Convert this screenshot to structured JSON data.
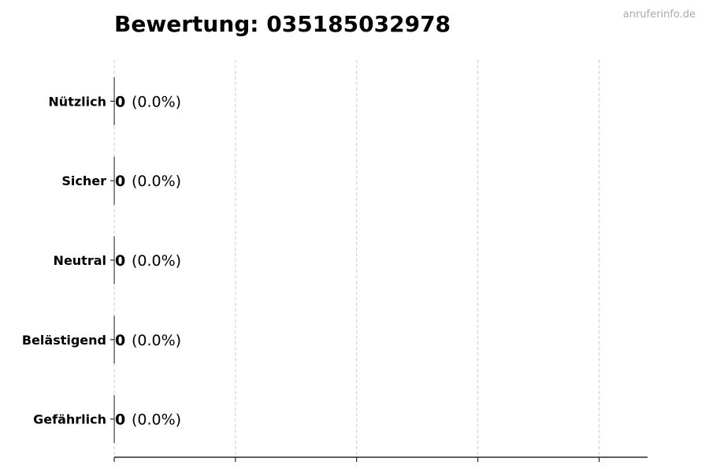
{
  "watermark": "anruferinfo.de",
  "chart_data": {
    "type": "bar",
    "orientation": "horizontal",
    "title": "Bewertung: 035185032978",
    "categories": [
      "Nützlich",
      "Sicher",
      "Neutral",
      "Belästigend",
      "Gefährlich"
    ],
    "values": [
      0,
      0,
      0,
      0,
      0
    ],
    "labels": [
      {
        "count": "0",
        "percent": "(0.0%)"
      },
      {
        "count": "0",
        "percent": "(0.0%)"
      },
      {
        "count": "0",
        "percent": "(0.0%)"
      },
      {
        "count": "0",
        "percent": "(0.0%)"
      },
      {
        "count": "0",
        "percent": "(0.0%)"
      }
    ],
    "xlim": [
      0,
      4.4
    ],
    "xticks": [
      0,
      1,
      2,
      3,
      4
    ],
    "xtick_labels_shown": false,
    "grid": "vertical dashed",
    "colors": {
      "bar_edge": "#000000",
      "grid": "#cccccc",
      "watermark": "#aaaaaa"
    }
  }
}
